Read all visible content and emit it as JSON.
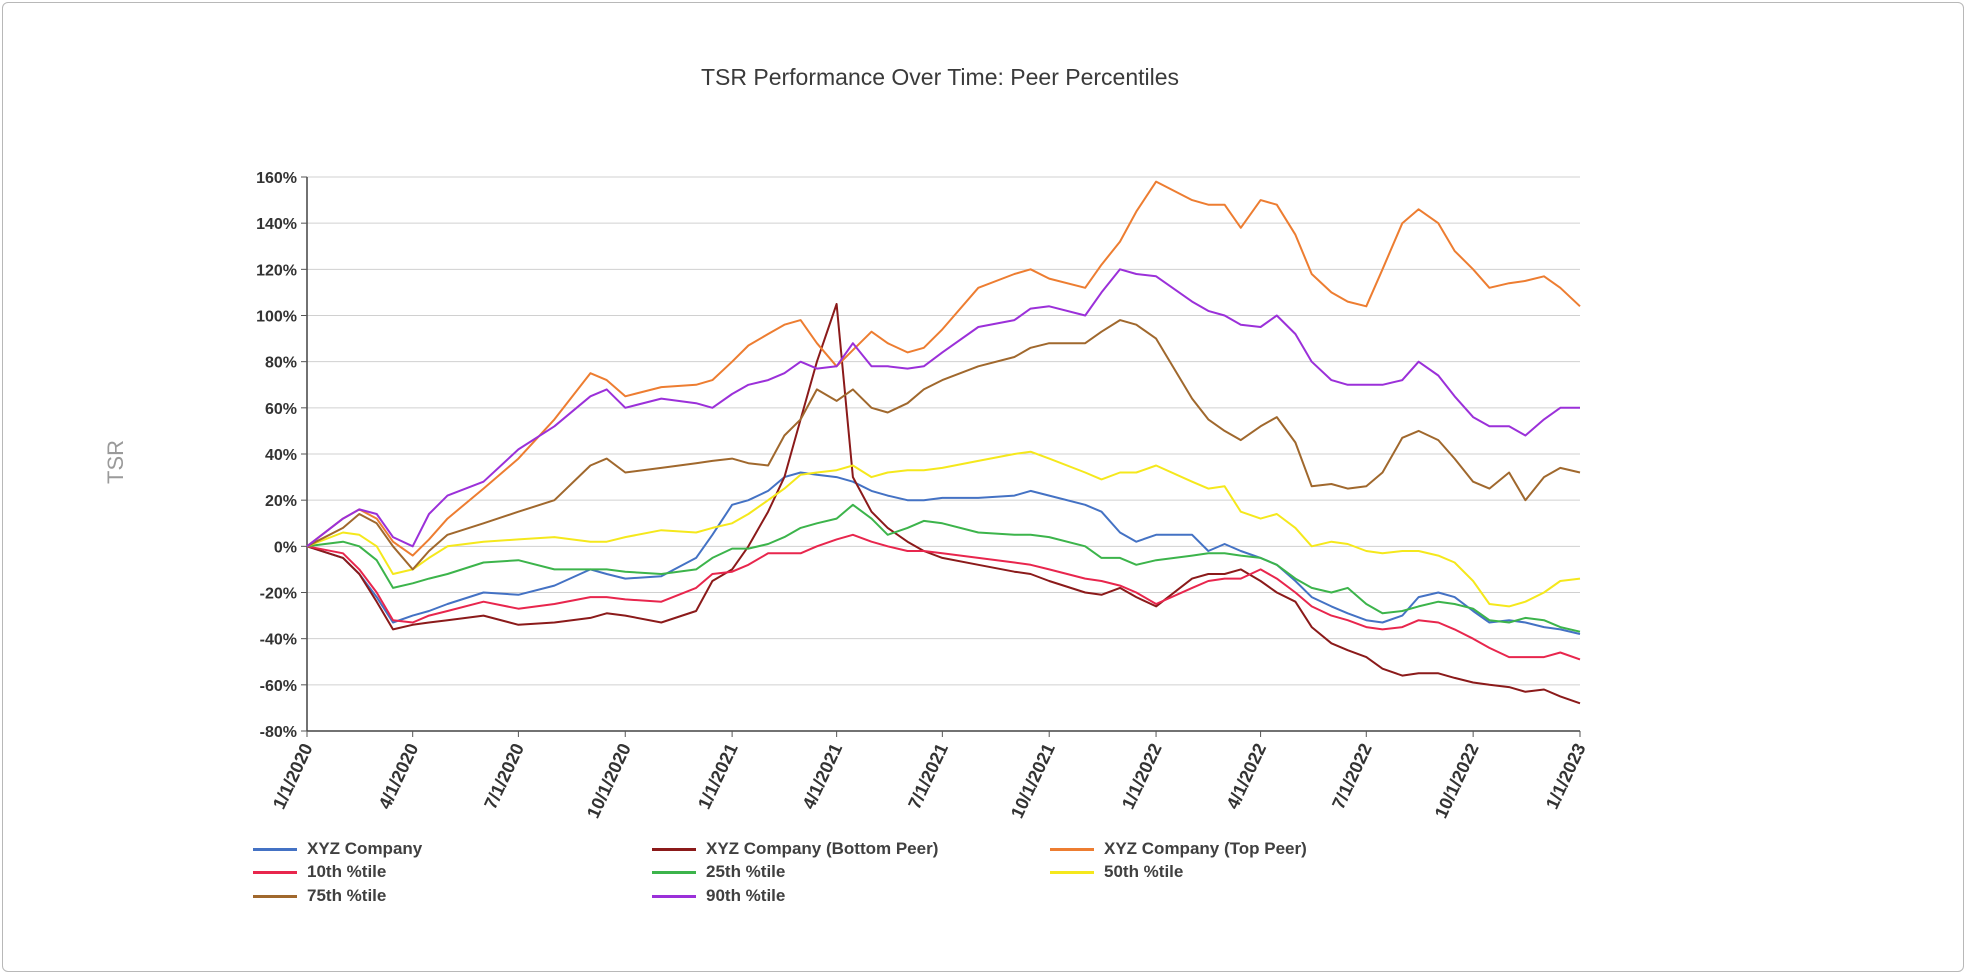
{
  "chart_data": {
    "type": "line",
    "title": "TSR Performance Over Time: Peer Percentiles",
    "xlabel": "",
    "ylabel": "TSR",
    "x_ticks": [
      "1/1/2020",
      "4/1/2020",
      "7/1/2020",
      "10/1/2020",
      "1/1/2021",
      "4/1/2021",
      "7/1/2021",
      "10/1/2021",
      "1/1/2022",
      "4/1/2022",
      "7/1/2022",
      "10/1/2022",
      "1/1/2023"
    ],
    "y_ticks": [
      "160%",
      "140%",
      "120%",
      "100%",
      "80%",
      "60%",
      "40%",
      "20%",
      "0%",
      "-20%",
      "-40%",
      "-60%",
      "-80%"
    ],
    "ylim": [
      -80,
      160
    ],
    "xlim": [
      "2020-01-01",
      "2023-01-01"
    ],
    "grid": "horizontal",
    "legend_position": "bottom",
    "x": [
      "2020-01-01",
      "2020-02-01",
      "2020-02-15",
      "2020-03-01",
      "2020-03-15",
      "2020-04-01",
      "2020-04-15",
      "2020-05-01",
      "2020-06-01",
      "2020-07-01",
      "2020-08-01",
      "2020-09-01",
      "2020-09-15",
      "2020-10-01",
      "2020-11-01",
      "2020-12-01",
      "2020-12-15",
      "2021-01-01",
      "2021-01-15",
      "2021-02-01",
      "2021-02-15",
      "2021-03-01",
      "2021-03-15",
      "2021-04-01",
      "2021-04-15",
      "2021-05-01",
      "2021-05-15",
      "2021-06-01",
      "2021-06-15",
      "2021-07-01",
      "2021-08-01",
      "2021-09-01",
      "2021-09-15",
      "2021-10-01",
      "2021-11-01",
      "2021-11-15",
      "2021-12-01",
      "2021-12-15",
      "2022-01-01",
      "2022-02-01",
      "2022-02-15",
      "2022-03-01",
      "2022-03-15",
      "2022-04-01",
      "2022-04-15",
      "2022-05-01",
      "2022-05-15",
      "2022-06-01",
      "2022-06-15",
      "2022-07-01",
      "2022-07-15",
      "2022-08-01",
      "2022-08-15",
      "2022-09-01",
      "2022-09-15",
      "2022-10-01",
      "2022-10-15",
      "2022-11-01",
      "2022-11-15",
      "2022-12-01",
      "2022-12-15",
      "2023-01-01"
    ],
    "series": [
      {
        "name": "XYZ Company",
        "color": "#4472c4",
        "values": [
          0,
          -5,
          -12,
          -22,
          -33,
          -30,
          -28,
          -25,
          -20,
          -21,
          -17,
          -10,
          -12,
          -14,
          -13,
          -5,
          5,
          18,
          20,
          24,
          30,
          32,
          31,
          30,
          28,
          24,
          22,
          20,
          20,
          21,
          21,
          22,
          24,
          22,
          18,
          15,
          6,
          2,
          5,
          5,
          -2,
          1,
          -2,
          -5,
          -8,
          -15,
          -22,
          -26,
          -29,
          -32,
          -33,
          -30,
          -22,
          -20,
          -22,
          -28,
          -33,
          -32,
          -33,
          -35,
          -36,
          -38
        ]
      },
      {
        "name": "XYZ Company (Bottom Peer)",
        "color": "#8b1a1a",
        "values": [
          0,
          -5,
          -12,
          -24,
          -36,
          -34,
          -33,
          -32,
          -30,
          -34,
          -33,
          -31,
          -29,
          -30,
          -33,
          -28,
          -15,
          -10,
          0,
          15,
          30,
          55,
          80,
          105,
          30,
          15,
          8,
          2,
          -2,
          -5,
          -8,
          -11,
          -12,
          -15,
          -20,
          -21,
          -18,
          -22,
          -26,
          -14,
          -12,
          -12,
          -10,
          -15,
          -20,
          -24,
          -35,
          -42,
          -45,
          -48,
          -53,
          -56,
          -55,
          -55,
          -57,
          -59,
          -60,
          -61,
          -63,
          -62,
          -65,
          -68
        ]
      },
      {
        "name": "XYZ Company (Top Peer)",
        "color": "#ed7d31",
        "values": [
          0,
          12,
          16,
          12,
          2,
          -4,
          3,
          12,
          25,
          38,
          55,
          75,
          72,
          65,
          69,
          70,
          72,
          80,
          87,
          92,
          96,
          98,
          88,
          78,
          85,
          93,
          88,
          84,
          86,
          94,
          112,
          118,
          120,
          116,
          112,
          122,
          132,
          145,
          158,
          150,
          148,
          148,
          138,
          150,
          148,
          135,
          118,
          110,
          106,
          104,
          120,
          140,
          146,
          140,
          128,
          120,
          112,
          114,
          115,
          117,
          112,
          104
        ]
      },
      {
        "name": "10th %tile",
        "color": "#e8264d",
        "values": [
          0,
          -3,
          -10,
          -20,
          -32,
          -33,
          -30,
          -28,
          -24,
          -27,
          -25,
          -22,
          -22,
          -23,
          -24,
          -18,
          -12,
          -11,
          -8,
          -3,
          -3,
          -3,
          0,
          3,
          5,
          2,
          0,
          -2,
          -2,
          -3,
          -5,
          -7,
          -8,
          -10,
          -14,
          -15,
          -17,
          -20,
          -25,
          -18,
          -15,
          -14,
          -14,
          -10,
          -14,
          -20,
          -26,
          -30,
          -32,
          -35,
          -36,
          -35,
          -32,
          -33,
          -36,
          -40,
          -44,
          -48,
          -48,
          -48,
          -46,
          -49
        ]
      },
      {
        "name": "25th %tile",
        "color": "#3cb44b",
        "values": [
          0,
          2,
          0,
          -6,
          -18,
          -16,
          -14,
          -12,
          -7,
          -6,
          -10,
          -10,
          -10,
          -11,
          -12,
          -10,
          -5,
          -1,
          -1,
          1,
          4,
          8,
          10,
          12,
          18,
          12,
          5,
          8,
          11,
          10,
          6,
          5,
          5,
          4,
          0,
          -5,
          -5,
          -8,
          -6,
          -4,
          -3,
          -3,
          -4,
          -5,
          -8,
          -14,
          -18,
          -20,
          -18,
          -25,
          -29,
          -28,
          -26,
          -24,
          -25,
          -27,
          -32,
          -33,
          -31,
          -32,
          -35,
          -37
        ]
      },
      {
        "name": "50th %tile",
        "color": "#f5e81c",
        "values": [
          0,
          6,
          5,
          0,
          -12,
          -10,
          -5,
          0,
          2,
          3,
          4,
          2,
          2,
          4,
          7,
          6,
          8,
          10,
          14,
          20,
          25,
          31,
          32,
          33,
          35,
          30,
          32,
          33,
          33,
          34,
          37,
          40,
          41,
          38,
          32,
          29,
          32,
          32,
          35,
          28,
          25,
          26,
          15,
          12,
          14,
          8,
          0,
          2,
          1,
          -2,
          -3,
          -2,
          -2,
          -4,
          -7,
          -15,
          -25,
          -26,
          -24,
          -20,
          -15,
          -14
        ]
      },
      {
        "name": "75th %tile",
        "color": "#a0682d",
        "values": [
          0,
          8,
          14,
          10,
          0,
          -10,
          -2,
          5,
          10,
          15,
          20,
          35,
          38,
          32,
          34,
          36,
          37,
          38,
          36,
          35,
          48,
          55,
          68,
          63,
          68,
          60,
          58,
          62,
          68,
          72,
          78,
          82,
          86,
          88,
          88,
          93,
          98,
          96,
          90,
          64,
          55,
          50,
          46,
          52,
          56,
          45,
          26,
          27,
          25,
          26,
          32,
          47,
          50,
          46,
          38,
          28,
          25,
          32,
          20,
          30,
          34,
          32
        ]
      },
      {
        "name": "90th %tile",
        "color": "#9b30d9",
        "values": [
          0,
          12,
          16,
          14,
          4,
          0,
          14,
          22,
          28,
          42,
          52,
          65,
          68,
          60,
          64,
          62,
          60,
          66,
          70,
          72,
          75,
          80,
          77,
          78,
          88,
          78,
          78,
          77,
          78,
          84,
          95,
          98,
          103,
          104,
          100,
          110,
          120,
          118,
          117,
          106,
          102,
          100,
          96,
          95,
          100,
          92,
          80,
          72,
          70,
          70,
          70,
          72,
          80,
          74,
          65,
          56,
          52,
          52,
          48,
          55,
          60,
          60
        ]
      }
    ]
  }
}
